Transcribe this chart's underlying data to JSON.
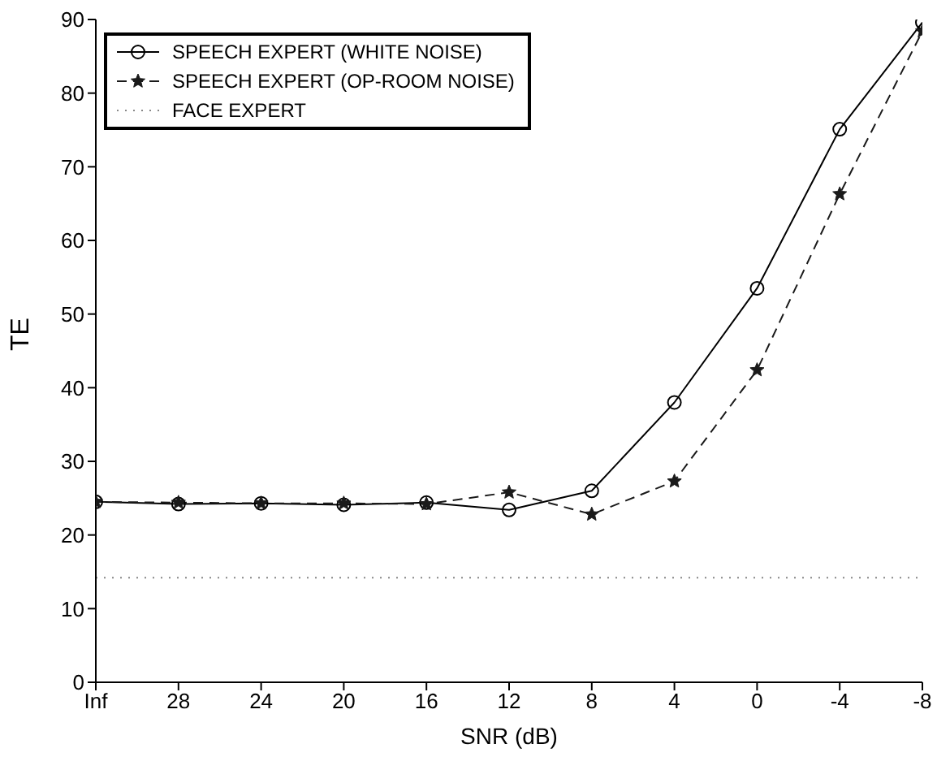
{
  "chart_data": {
    "type": "line",
    "xlabel": "SNR (dB)",
    "ylabel": "TE",
    "categories": [
      "Inf",
      "28",
      "24",
      "20",
      "16",
      "12",
      "8",
      "4",
      "0",
      "-4",
      "-8"
    ],
    "ylim": [
      0,
      90
    ],
    "yticks": [
      0,
      10,
      20,
      30,
      40,
      50,
      60,
      70,
      80,
      90
    ],
    "grid": false,
    "legend": "top left",
    "series": [
      {
        "name": "SPEECH EXPERT (WHITE NOISE)",
        "color": "#000000",
        "marker": "circle",
        "line_style": "solid",
        "values": [
          24.5,
          24.2,
          24.3,
          24.1,
          24.4,
          23.4,
          26.0,
          38.0,
          53.5,
          75.1,
          89.6
        ]
      },
      {
        "name": "SPEECH EXPERT (OP-ROOM NOISE)",
        "color": "#1a1a1a",
        "marker": "star",
        "line_style": "dashed",
        "values": [
          24.5,
          24.4,
          24.3,
          24.3,
          24.2,
          25.8,
          22.8,
          27.3,
          42.4,
          66.3,
          88.4
        ]
      },
      {
        "name": "FACE EXPERT",
        "color": "#888888",
        "marker": "none",
        "line_style": "dotted",
        "values": [
          14.2,
          14.2,
          14.2,
          14.2,
          14.2,
          14.2,
          14.2,
          14.2,
          14.2,
          14.2,
          14.2
        ]
      }
    ]
  }
}
